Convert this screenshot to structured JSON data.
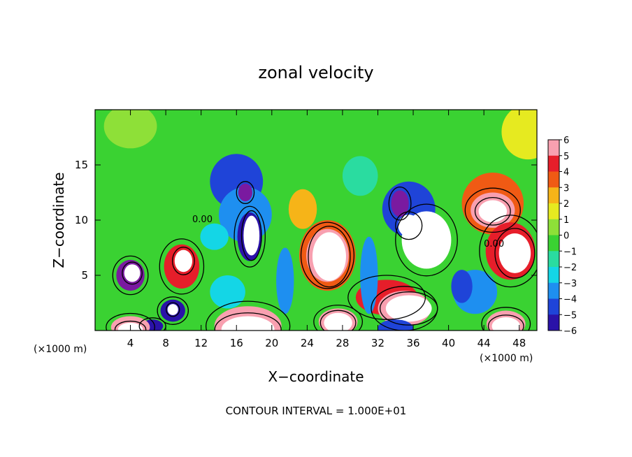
{
  "chart_data": {
    "type": "heatmap",
    "title": "zonal velocity",
    "xlabel": "X−coordinate",
    "ylabel": "Z−coordinate",
    "x_unit": "(×1000 m)",
    "x_ticks": [
      4,
      8,
      12,
      16,
      20,
      24,
      28,
      32,
      36,
      40,
      44,
      48
    ],
    "y_ticks": [
      5,
      10,
      15
    ],
    "xlim": [
      0,
      50
    ],
    "ylim": [
      0,
      20
    ],
    "colorbar": {
      "ticks": [
        6,
        5,
        4,
        3,
        2,
        1,
        0,
        -1,
        -2,
        -3,
        -4,
        -5,
        -6
      ],
      "range": [
        -6,
        6
      ],
      "colors": {
        "-6": "#7a1aa0",
        "-5": "#2a12a8",
        "-4": "#1f44d8",
        "-3": "#1e8ff0",
        "-2": "#14d6e6",
        "-1": "#2adca0",
        "0": "#3ad232",
        "1": "#8ee038",
        "2": "#e6ea20",
        "3": "#f6b418",
        "4": "#f05a14",
        "5": "#e61e2a",
        "6": "#f8a0b0",
        "saturated_positive": "#ffffff"
      }
    },
    "contour_interval_text": "CONTOUR INTERVAL = 1.000E+01",
    "contour_label": "0.00",
    "blobs": [
      {
        "x": 4.0,
        "z": 5.0,
        "rx": 1.6,
        "rz": 1.4,
        "v": -6
      },
      {
        "x": 4.2,
        "z": 5.2,
        "rx": 0.9,
        "rz": 0.8,
        "v": 8
      },
      {
        "x": 9.8,
        "z": 5.8,
        "rx": 2.0,
        "rz": 2.0,
        "v": 5
      },
      {
        "x": 10.0,
        "z": 6.3,
        "rx": 1.0,
        "rz": 1.0,
        "v": 7
      },
      {
        "x": 8.8,
        "z": 1.8,
        "rx": 1.4,
        "rz": 1.0,
        "v": -5
      },
      {
        "x": 8.8,
        "z": 1.9,
        "rx": 0.6,
        "rz": 0.5,
        "v": 7
      },
      {
        "x": 6.5,
        "z": 0.4,
        "rx": 1.2,
        "rz": 0.6,
        "v": -5
      },
      {
        "x": 4.0,
        "z": 0.3,
        "rx": 2.2,
        "rz": 1.0,
        "v": 6
      },
      {
        "x": 4.0,
        "z": 0.1,
        "rx": 1.4,
        "rz": 0.6,
        "v": 8
      },
      {
        "x": 16.0,
        "z": 13.5,
        "rx": 3.0,
        "rz": 2.5,
        "v": -4
      },
      {
        "x": 17.0,
        "z": 10.5,
        "rx": 3.0,
        "rz": 2.5,
        "v": -3
      },
      {
        "x": 17.0,
        "z": 12.5,
        "rx": 0.8,
        "rz": 0.8,
        "v": -6
      },
      {
        "x": 17.5,
        "z": 8.5,
        "rx": 1.4,
        "rz": 2.2,
        "v": -5
      },
      {
        "x": 17.7,
        "z": 8.6,
        "rx": 0.9,
        "rz": 1.8,
        "v": 8
      },
      {
        "x": 17.3,
        "z": 0.4,
        "rx": 3.8,
        "rz": 1.8,
        "v": 6
      },
      {
        "x": 17.3,
        "z": 0.1,
        "rx": 3.0,
        "rz": 1.2,
        "v": 8
      },
      {
        "x": 15.0,
        "z": 3.5,
        "rx": 2.0,
        "rz": 1.5,
        "v": -2
      },
      {
        "x": 23.5,
        "z": 11.0,
        "rx": 1.6,
        "rz": 1.8,
        "v": 3
      },
      {
        "x": 26.3,
        "z": 6.8,
        "rx": 3.2,
        "rz": 3.2,
        "v": 4
      },
      {
        "x": 26.3,
        "z": 6.8,
        "rx": 2.4,
        "rz": 2.4,
        "v": 6
      },
      {
        "x": 26.5,
        "z": 6.7,
        "rx": 1.9,
        "rz": 2.2,
        "v": 8
      },
      {
        "x": 27.5,
        "z": 0.8,
        "rx": 2.2,
        "rz": 1.2,
        "v": 6
      },
      {
        "x": 27.5,
        "z": 0.7,
        "rx": 1.6,
        "rz": 0.9,
        "v": 8
      },
      {
        "x": 33.0,
        "z": 3.0,
        "rx": 3.5,
        "rz": 1.6,
        "v": 5
      },
      {
        "x": 35.0,
        "z": 2.0,
        "rx": 3.0,
        "rz": 1.6,
        "v": 6
      },
      {
        "x": 35.5,
        "z": 2.0,
        "rx": 2.6,
        "rz": 1.2,
        "v": 8
      },
      {
        "x": 34.0,
        "z": 0.2,
        "rx": 2.0,
        "rz": 0.8,
        "v": -4
      },
      {
        "x": 35.5,
        "z": 11.0,
        "rx": 3.0,
        "rz": 2.5,
        "v": -4
      },
      {
        "x": 34.5,
        "z": 11.5,
        "rx": 1.0,
        "rz": 1.2,
        "v": -6
      },
      {
        "x": 37.5,
        "z": 8.2,
        "rx": 2.8,
        "rz": 2.6,
        "v": 8
      },
      {
        "x": 35.5,
        "z": 9.5,
        "rx": 1.2,
        "rz": 1.0,
        "v": 8
      },
      {
        "x": 45.0,
        "z": 11.5,
        "rx": 3.5,
        "rz": 2.8,
        "v": 4
      },
      {
        "x": 45.0,
        "z": 10.9,
        "rx": 2.5,
        "rz": 1.6,
        "v": 6
      },
      {
        "x": 45.0,
        "z": 10.8,
        "rx": 1.6,
        "rz": 1.0,
        "v": 8
      },
      {
        "x": 47.0,
        "z": 7.2,
        "rx": 2.8,
        "rz": 2.6,
        "v": 5
      },
      {
        "x": 47.5,
        "z": 7.0,
        "rx": 1.8,
        "rz": 1.8,
        "v": 8
      },
      {
        "x": 46.5,
        "z": 0.6,
        "rx": 2.2,
        "rz": 1.2,
        "v": 6
      },
      {
        "x": 46.5,
        "z": 0.4,
        "rx": 1.6,
        "rz": 0.8,
        "v": 8
      },
      {
        "x": 43.0,
        "z": 3.5,
        "rx": 2.5,
        "rz": 2.0,
        "v": -3
      },
      {
        "x": 41.5,
        "z": 4.0,
        "rx": 1.2,
        "rz": 1.5,
        "v": -4
      },
      {
        "x": 31.0,
        "z": 5.0,
        "rx": 1.0,
        "rz": 3.5,
        "v": -3
      },
      {
        "x": 21.5,
        "z": 4.5,
        "rx": 1.0,
        "rz": 3.0,
        "v": -3
      },
      {
        "x": 13.5,
        "z": 8.5,
        "rx": 1.6,
        "rz": 1.2,
        "v": -2
      },
      {
        "x": 30.0,
        "z": 14.0,
        "rx": 2.0,
        "rz": 1.8,
        "v": -1
      },
      {
        "x": 49.0,
        "z": 18.0,
        "rx": 3.0,
        "rz": 2.5,
        "v": 2
      },
      {
        "x": 4.0,
        "z": 18.5,
        "rx": 3.0,
        "rz": 2.0,
        "v": 1
      }
    ]
  }
}
